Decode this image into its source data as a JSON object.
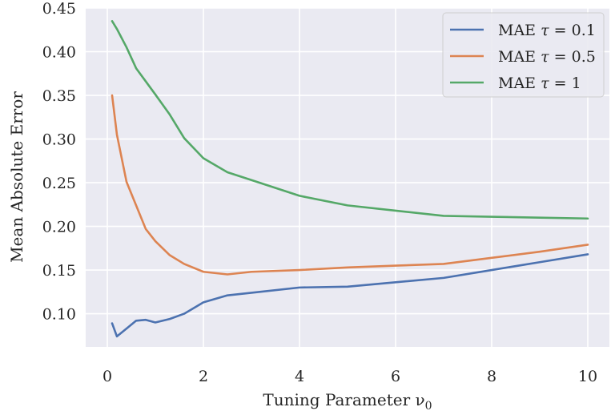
{
  "chart_data": {
    "type": "line",
    "xlabel": "Tuning Parameter ν",
    "xlabel_sub": "0",
    "ylabel": "Mean Absolute Error",
    "xlim": [
      -0.45,
      10.45
    ],
    "ylim": [
      0.062,
      0.45
    ],
    "x_ticks": [
      0,
      2,
      4,
      6,
      8,
      10
    ],
    "x_tick_labels": [
      "0",
      "2",
      "4",
      "6",
      "8",
      "10"
    ],
    "y_ticks": [
      0.1,
      0.15,
      0.2,
      0.25,
      0.3,
      0.35,
      0.4,
      0.45
    ],
    "y_tick_labels": [
      "0.10",
      "0.15",
      "0.20",
      "0.25",
      "0.30",
      "0.35",
      "0.40",
      "0.45"
    ],
    "grid": true,
    "legend_position": "top-right",
    "background": "#eaeaf2",
    "series": [
      {
        "name": "MAE τ = 0.1",
        "label_prefix": "MAE ",
        "label_symbol": "τ",
        "label_eq": " = 0.1",
        "color": "#4c72b0",
        "x": [
          0.1,
          0.2,
          0.4,
          0.6,
          0.8,
          1.0,
          1.3,
          1.6,
          2.0,
          2.5,
          3.0,
          4.0,
          5.0,
          6.0,
          7.0,
          8.0,
          9.0,
          10.0
        ],
        "y": [
          0.089,
          0.074,
          0.083,
          0.092,
          0.093,
          0.09,
          0.094,
          0.1,
          0.113,
          0.121,
          0.124,
          0.13,
          0.131,
          0.136,
          0.141,
          0.15,
          0.159,
          0.168
        ]
      },
      {
        "name": "MAE τ = 0.5",
        "label_prefix": "MAE ",
        "label_symbol": "τ",
        "label_eq": " = 0.5",
        "color": "#dd8452",
        "x": [
          0.1,
          0.2,
          0.4,
          0.6,
          0.8,
          1.0,
          1.3,
          1.6,
          2.0,
          2.5,
          3.0,
          4.0,
          5.0,
          6.0,
          7.0,
          8.0,
          9.0,
          10.0
        ],
        "y": [
          0.35,
          0.305,
          0.251,
          0.224,
          0.197,
          0.183,
          0.167,
          0.157,
          0.148,
          0.145,
          0.148,
          0.15,
          0.153,
          0.155,
          0.157,
          0.164,
          0.171,
          0.179
        ]
      },
      {
        "name": "MAE τ = 1",
        "label_prefix": "MAE ",
        "label_symbol": "τ",
        "label_eq": " = 1",
        "color": "#55a868",
        "x": [
          0.1,
          0.2,
          0.4,
          0.6,
          0.8,
          1.0,
          1.3,
          1.6,
          2.0,
          2.5,
          3.0,
          4.0,
          5.0,
          6.0,
          7.0,
          8.0,
          9.0,
          10.0
        ],
        "y": [
          0.435,
          0.426,
          0.405,
          0.381,
          0.366,
          0.351,
          0.328,
          0.301,
          0.278,
          0.262,
          0.253,
          0.235,
          0.224,
          0.218,
          0.212,
          0.211,
          0.21,
          0.209
        ]
      }
    ]
  }
}
